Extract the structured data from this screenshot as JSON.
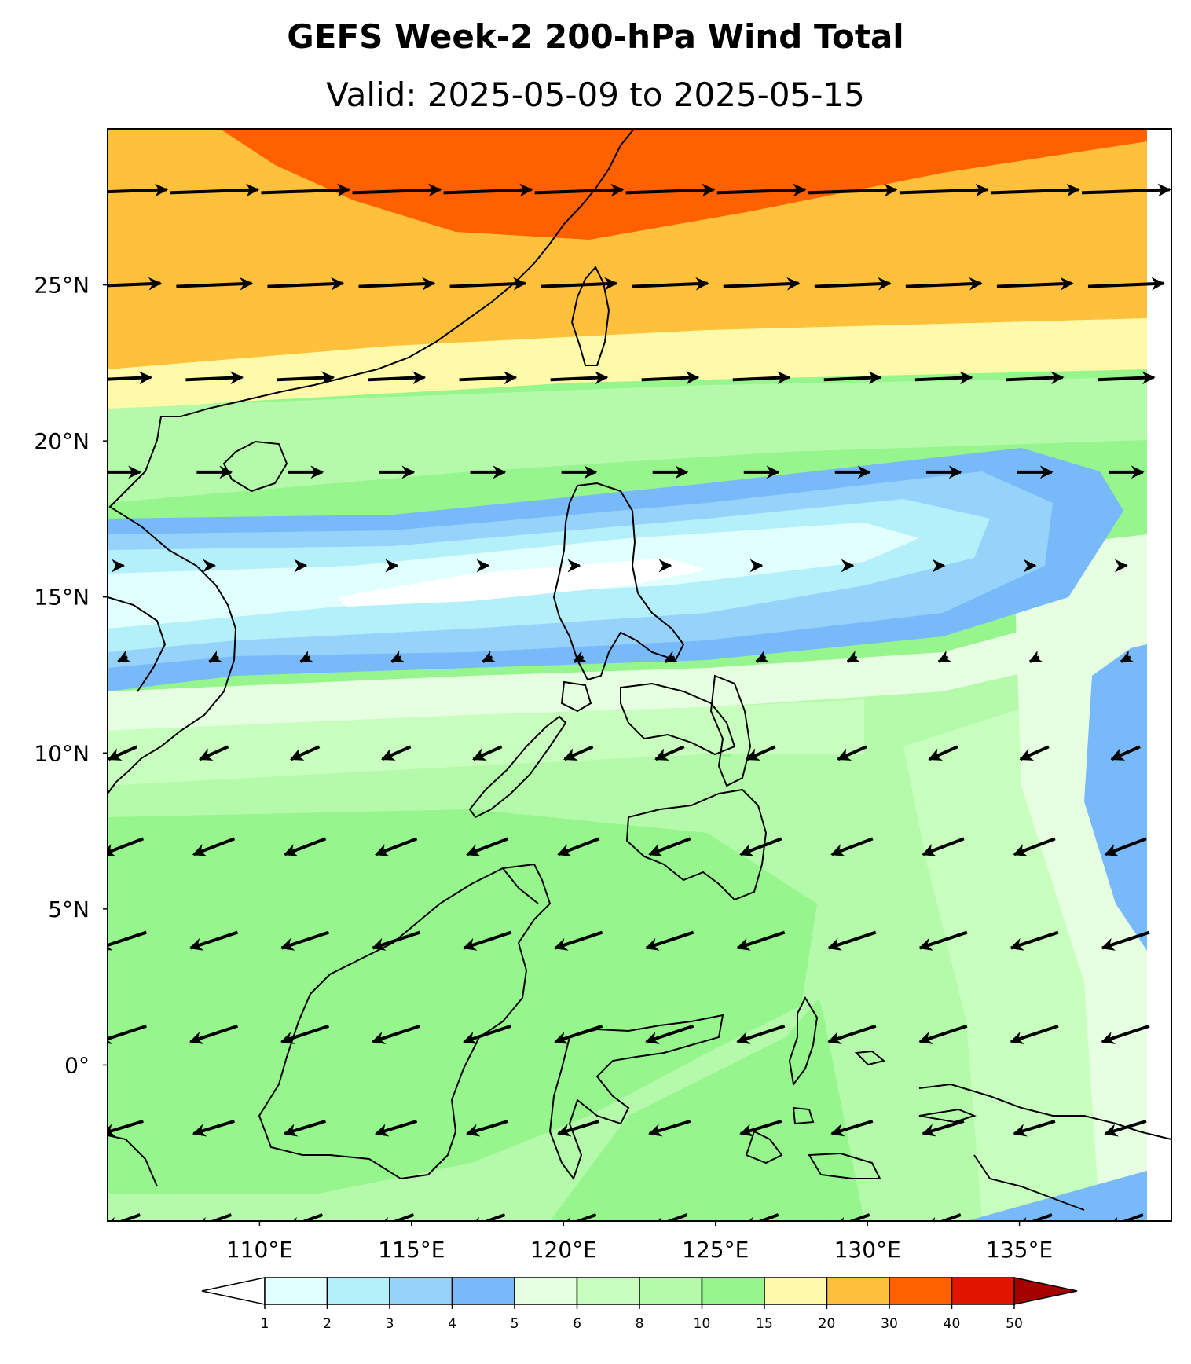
{
  "title": "GEFS Week-2 200-hPa Wind Total",
  "subtitle": "Valid: 2025-05-09 to 2025-05-15",
  "map": {
    "lon_range": [
      105,
      140
    ],
    "lat_range": [
      -5,
      30
    ],
    "lon_ticks": [
      {
        "value": 110,
        "label": "110°E"
      },
      {
        "value": 115,
        "label": "115°E"
      },
      {
        "value": 120,
        "label": "120°E"
      },
      {
        "value": 125,
        "label": "125°E"
      },
      {
        "value": 130,
        "label": "130°E"
      },
      {
        "value": 135,
        "label": "135°E"
      }
    ],
    "lat_ticks": [
      {
        "value": 25,
        "label": "25°N"
      },
      {
        "value": 20,
        "label": "20°N"
      },
      {
        "value": 15,
        "label": "15°N"
      },
      {
        "value": 10,
        "label": "10°N"
      },
      {
        "value": 5,
        "label": "5°N"
      },
      {
        "value": 0,
        "label": "0°"
      }
    ],
    "wind_speed_bands": [
      {
        "min": 1,
        "max": 2,
        "color": "#e1ffff"
      },
      {
        "min": 2,
        "max": 3,
        "color": "#b4f0fa"
      },
      {
        "min": 3,
        "max": 4,
        "color": "#96d2fa"
      },
      {
        "min": 4,
        "max": 5,
        "color": "#78b9fa"
      },
      {
        "min": 5,
        "max": 6,
        "color": "#e6ffe1"
      },
      {
        "min": 6,
        "max": 8,
        "color": "#c8ffbe"
      },
      {
        "min": 8,
        "max": 10,
        "color": "#b4faaa"
      },
      {
        "min": 10,
        "max": 15,
        "color": "#96f58c"
      },
      {
        "min": 15,
        "max": 20,
        "color": "#fffaaa"
      },
      {
        "min": 20,
        "max": 30,
        "color": "#ffc03c"
      },
      {
        "min": 30,
        "max": 40,
        "color": "#ff6000"
      },
      {
        "min": 40,
        "max": 50,
        "color": "#e11400"
      }
    ],
    "over_color": "#a50000",
    "under_color": "#ffffff",
    "wind_vector_rows": [
      {
        "lat": 28,
        "u": 28,
        "v": 1
      },
      {
        "lat": 25,
        "u": 24,
        "v": 1
      },
      {
        "lat": 22,
        "u": 18,
        "v": 0.8
      },
      {
        "lat": 19,
        "u": 11,
        "v": 0
      },
      {
        "lat": 16,
        "u": 0.5,
        "v": 0
      },
      {
        "lat": 13,
        "u": -3,
        "v": -1.5
      },
      {
        "lat": 10,
        "u": -9,
        "v": -4
      },
      {
        "lat": 7,
        "u": -13,
        "v": -5
      },
      {
        "lat": 4,
        "u": -15,
        "v": -5
      },
      {
        "lat": 1,
        "u": -15,
        "v": -5
      },
      {
        "lat": -2,
        "u": -13,
        "v": -4
      },
      {
        "lat": -5,
        "u": -11,
        "v": -4
      }
    ],
    "colorbar_ticks": [
      "1",
      "2",
      "3",
      "4",
      "5",
      "6",
      "8",
      "10",
      "15",
      "20",
      "30",
      "40",
      "50"
    ]
  }
}
